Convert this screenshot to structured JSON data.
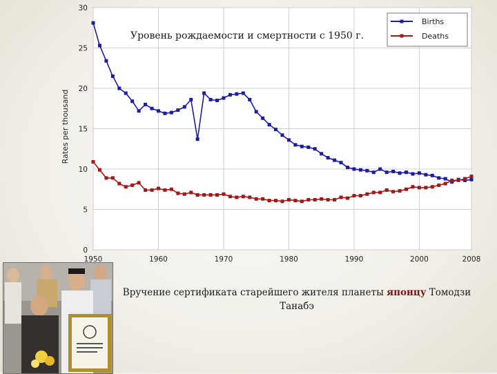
{
  "slide": {
    "title": "Уровень рождаемости и смертности с 1950 г.",
    "caption_before": "Вручение сертификата старейшего жителя планеты ",
    "caption_highlight": "японцу",
    "caption_after": " Томодзи Танабэ"
  },
  "chart_data": {
    "type": "line",
    "title": "",
    "xlabel": "",
    "ylabel": "Rates per thousand",
    "xlim": [
      1950,
      2008
    ],
    "ylim": [
      0,
      30
    ],
    "xticks": [
      1950,
      1960,
      1970,
      1980,
      1990,
      2000,
      2008
    ],
    "yticks": [
      0,
      5,
      10,
      15,
      20,
      25,
      30
    ],
    "grid": true,
    "legend": "top-right",
    "x": [
      1950,
      1951,
      1952,
      1953,
      1954,
      1955,
      1956,
      1957,
      1958,
      1959,
      1960,
      1961,
      1962,
      1963,
      1964,
      1965,
      1966,
      1967,
      1968,
      1969,
      1970,
      1971,
      1972,
      1973,
      1974,
      1975,
      1976,
      1977,
      1978,
      1979,
      1980,
      1981,
      1982,
      1983,
      1984,
      1985,
      1986,
      1987,
      1988,
      1989,
      1990,
      1991,
      1992,
      1993,
      1994,
      1995,
      1996,
      1997,
      1998,
      1999,
      2000,
      2001,
      2002,
      2003,
      2004,
      2005,
      2006,
      2007,
      2008
    ],
    "series": [
      {
        "name": "Births",
        "color": "#1c1ca0",
        "values": [
          28.1,
          25.3,
          23.4,
          21.5,
          20.0,
          19.4,
          18.4,
          17.2,
          18.0,
          17.5,
          17.2,
          16.9,
          17.0,
          17.3,
          17.7,
          18.6,
          13.7,
          19.4,
          18.6,
          18.5,
          18.8,
          19.2,
          19.3,
          19.4,
          18.6,
          17.1,
          16.3,
          15.5,
          14.9,
          14.2,
          13.6,
          13.0,
          12.8,
          12.7,
          12.5,
          11.9,
          11.4,
          11.1,
          10.8,
          10.2,
          10.0,
          9.9,
          9.8,
          9.6,
          10.0,
          9.6,
          9.7,
          9.5,
          9.6,
          9.4,
          9.5,
          9.3,
          9.2,
          8.9,
          8.8,
          8.4,
          8.7,
          8.6,
          8.7
        ]
      },
      {
        "name": "Deaths",
        "color": "#a01818",
        "values": [
          10.9,
          9.9,
          8.9,
          8.9,
          8.2,
          7.8,
          8.0,
          8.3,
          7.4,
          7.4,
          7.6,
          7.4,
          7.5,
          7.0,
          6.9,
          7.1,
          6.8,
          6.8,
          6.8,
          6.8,
          6.9,
          6.6,
          6.5,
          6.6,
          6.5,
          6.3,
          6.3,
          6.1,
          6.1,
          6.0,
          6.2,
          6.1,
          6.0,
          6.2,
          6.2,
          6.3,
          6.2,
          6.2,
          6.5,
          6.4,
          6.7,
          6.7,
          6.9,
          7.1,
          7.1,
          7.4,
          7.2,
          7.3,
          7.5,
          7.8,
          7.7,
          7.7,
          7.8,
          8.0,
          8.2,
          8.6,
          8.6,
          8.8,
          9.1
        ]
      }
    ]
  }
}
